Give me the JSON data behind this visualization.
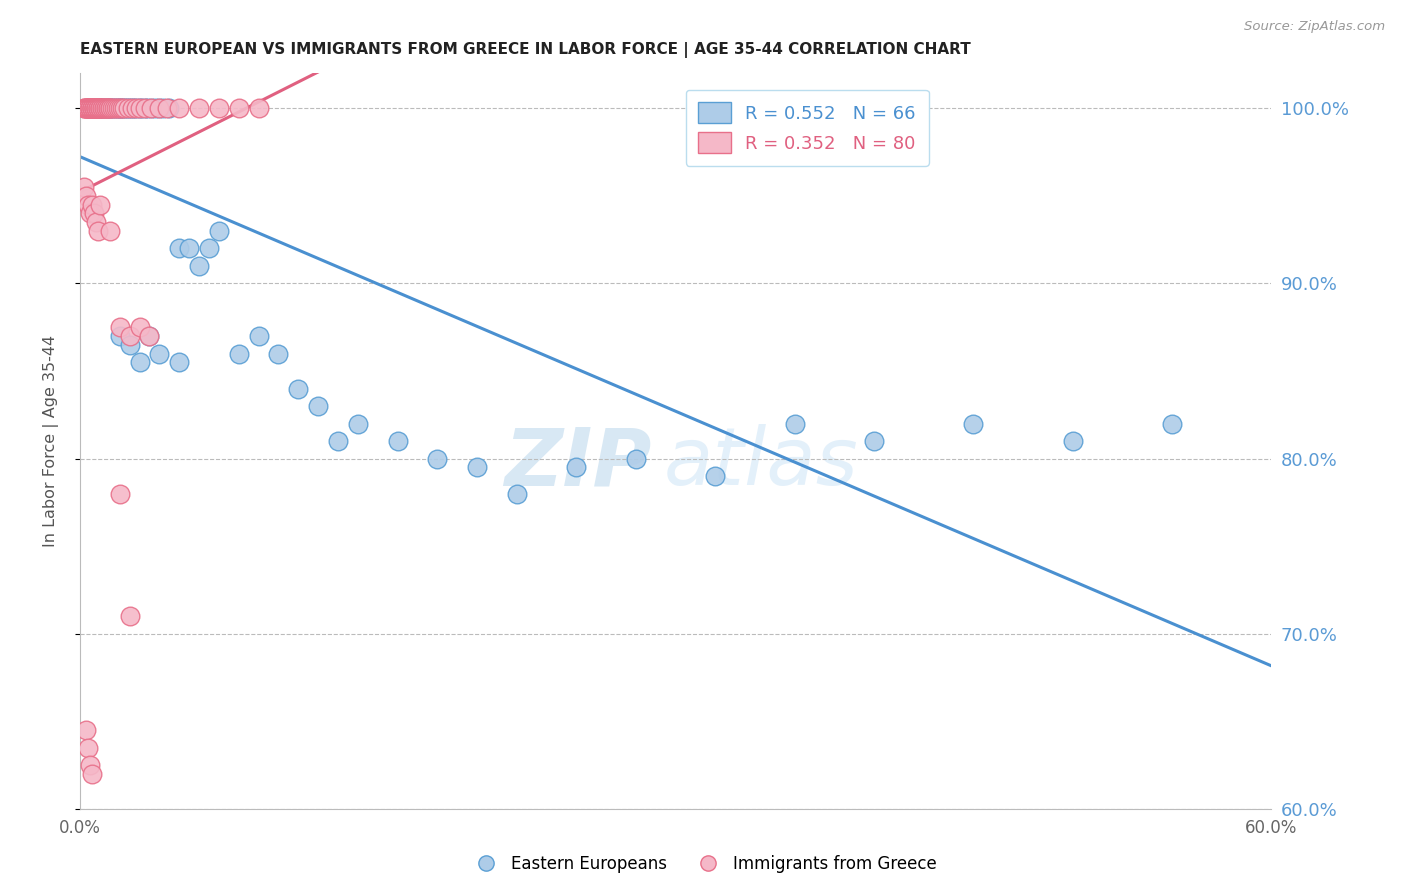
{
  "title": "EASTERN EUROPEAN VS IMMIGRANTS FROM GREECE IN LABOR FORCE | AGE 35-44 CORRELATION CHART",
  "source": "Source: ZipAtlas.com",
  "ylabel": "In Labor Force | Age 35-44",
  "xlim": [
    0.0,
    0.6
  ],
  "ylim": [
    0.6,
    1.02
  ],
  "x_ticks": [
    0.0,
    0.1,
    0.2,
    0.3,
    0.4,
    0.5,
    0.6
  ],
  "x_tick_labels": [
    "0.0%",
    "",
    "",
    "",
    "",
    "",
    "60.0%"
  ],
  "y_ticks": [
    0.6,
    0.7,
    0.8,
    0.9,
    1.0
  ],
  "y_tick_labels": [
    "60.0%",
    "70.0%",
    "80.0%",
    "90.0%",
    "100.0%"
  ],
  "blue_R": 0.552,
  "blue_N": 66,
  "pink_R": 0.352,
  "pink_N": 80,
  "blue_fill": "#aecce8",
  "pink_fill": "#f5b8c8",
  "blue_edge": "#5a9fd4",
  "pink_edge": "#e8708a",
  "blue_line": "#4a90d0",
  "pink_line": "#e06080",
  "blue_scatter_x": [
    0.004,
    0.006,
    0.007,
    0.008,
    0.009,
    0.01,
    0.01,
    0.011,
    0.012,
    0.013,
    0.014,
    0.015,
    0.015,
    0.016,
    0.017,
    0.018,
    0.019,
    0.02,
    0.02,
    0.021,
    0.022,
    0.023,
    0.024,
    0.025,
    0.026,
    0.027,
    0.028,
    0.03,
    0.031,
    0.033,
    0.034,
    0.036,
    0.038,
    0.04,
    0.042,
    0.045,
    0.05,
    0.055,
    0.06,
    0.065,
    0.07,
    0.08,
    0.09,
    0.1,
    0.11,
    0.12,
    0.13,
    0.14,
    0.16,
    0.18,
    0.2,
    0.22,
    0.25,
    0.28,
    0.32,
    0.36,
    0.4,
    0.45,
    0.5,
    0.55,
    0.02,
    0.025,
    0.03,
    0.035,
    0.04,
    0.05
  ],
  "blue_scatter_y": [
    1.0,
    1.0,
    1.0,
    1.0,
    1.0,
    1.0,
    1.0,
    1.0,
    1.0,
    1.0,
    1.0,
    1.0,
    1.0,
    1.0,
    1.0,
    1.0,
    1.0,
    1.0,
    1.0,
    1.0,
    1.0,
    1.0,
    1.0,
    1.0,
    1.0,
    1.0,
    1.0,
    1.0,
    1.0,
    1.0,
    1.0,
    1.0,
    1.0,
    1.0,
    1.0,
    1.0,
    0.92,
    0.92,
    0.91,
    0.92,
    0.93,
    0.86,
    0.87,
    0.86,
    0.84,
    0.83,
    0.81,
    0.82,
    0.81,
    0.8,
    0.795,
    0.78,
    0.795,
    0.8,
    0.79,
    0.82,
    0.81,
    0.82,
    0.81,
    0.82,
    0.87,
    0.865,
    0.855,
    0.87,
    0.86,
    0.855
  ],
  "pink_scatter_x": [
    0.002,
    0.002,
    0.003,
    0.003,
    0.003,
    0.004,
    0.004,
    0.004,
    0.005,
    0.005,
    0.005,
    0.005,
    0.006,
    0.006,
    0.006,
    0.006,
    0.007,
    0.007,
    0.007,
    0.007,
    0.008,
    0.008,
    0.008,
    0.008,
    0.009,
    0.009,
    0.009,
    0.01,
    0.01,
    0.01,
    0.011,
    0.011,
    0.012,
    0.012,
    0.013,
    0.013,
    0.014,
    0.014,
    0.015,
    0.015,
    0.016,
    0.017,
    0.018,
    0.019,
    0.02,
    0.021,
    0.022,
    0.024,
    0.026,
    0.028,
    0.03,
    0.033,
    0.036,
    0.04,
    0.044,
    0.05,
    0.06,
    0.07,
    0.08,
    0.09,
    0.002,
    0.003,
    0.004,
    0.005,
    0.006,
    0.007,
    0.008,
    0.009,
    0.01,
    0.015,
    0.02,
    0.025,
    0.03,
    0.035,
    0.02,
    0.025,
    0.003,
    0.004,
    0.005,
    0.006
  ],
  "pink_scatter_y": [
    1.0,
    1.0,
    1.0,
    1.0,
    1.0,
    1.0,
    1.0,
    1.0,
    1.0,
    1.0,
    1.0,
    1.0,
    1.0,
    1.0,
    1.0,
    1.0,
    1.0,
    1.0,
    1.0,
    1.0,
    1.0,
    1.0,
    1.0,
    1.0,
    1.0,
    1.0,
    1.0,
    1.0,
    1.0,
    1.0,
    1.0,
    1.0,
    1.0,
    1.0,
    1.0,
    1.0,
    1.0,
    1.0,
    1.0,
    1.0,
    1.0,
    1.0,
    1.0,
    1.0,
    1.0,
    1.0,
    1.0,
    1.0,
    1.0,
    1.0,
    1.0,
    1.0,
    1.0,
    1.0,
    1.0,
    1.0,
    1.0,
    1.0,
    1.0,
    1.0,
    0.955,
    0.95,
    0.945,
    0.94,
    0.945,
    0.94,
    0.935,
    0.93,
    0.945,
    0.93,
    0.875,
    0.87,
    0.875,
    0.87,
    0.78,
    0.71,
    0.645,
    0.635,
    0.625,
    0.62
  ],
  "watermark_zip": "ZIP",
  "watermark_atlas": "atlas",
  "background_color": "#ffffff",
  "grid_color": "#bbbbbb"
}
